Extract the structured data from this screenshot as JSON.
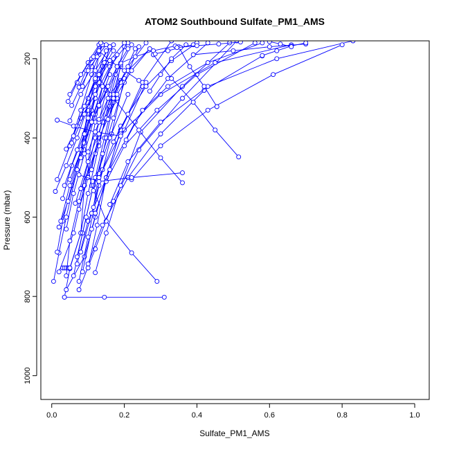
{
  "chart_data": {
    "type": "line",
    "title": "ATOM2 Southbound Sulfate_PM1_AMS",
    "xlabel": "Sulfate_PM1_AMS",
    "ylabel": "Pressure (mbar)",
    "xlim": [
      -0.03,
      1.04
    ],
    "ylim": [
      1060,
      155
    ],
    "y_reversed": true,
    "x_ticks": [
      0.0,
      0.2,
      0.4,
      0.6,
      0.8,
      1.0
    ],
    "x_tick_labels": [
      "0.0",
      "0.2",
      "0.4",
      "0.6",
      "0.8",
      "1.0"
    ],
    "y_ticks": [
      200,
      400,
      600,
      800,
      1000
    ],
    "y_tick_labels": [
      "200",
      "400",
      "600",
      "800",
      "1000"
    ],
    "series_color": "#0000ff",
    "marker": "open-circle",
    "grid": false,
    "legend": "none",
    "series": [
      {
        "x": [
          0.035,
          0.145,
          0.31
        ],
        "y": [
          802,
          802,
          802
        ]
      },
      {
        "x": [
          0.035,
          0.05,
          0.08,
          0.09,
          0.13,
          0.18
        ],
        "y": [
          802,
          730,
          640,
          520,
          400,
          300
        ]
      },
      {
        "x": [
          0.04,
          0.09,
          0.12,
          0.15,
          0.19,
          0.25
        ],
        "y": [
          783,
          700,
          600,
          500,
          380,
          270
        ]
      },
      {
        "x": [
          0.075,
          0.12,
          0.17,
          0.24,
          0.36,
          0.51
        ],
        "y": [
          783,
          680,
          560,
          430,
          300,
          155
        ]
      },
      {
        "x": [
          0.005,
          0.02,
          0.04,
          0.07,
          0.1,
          0.13
        ],
        "y": [
          762,
          690,
          600,
          480,
          340,
          190
        ]
      },
      {
        "x": [
          0.29,
          0.22,
          0.15,
          0.11,
          0.09
        ],
        "y": [
          762,
          690,
          610,
          520,
          430
        ]
      },
      {
        "x": [
          0.075,
          0.1,
          0.13,
          0.165,
          0.2
        ],
        "y": [
          762,
          650,
          520,
          390,
          250
        ]
      },
      {
        "x": [
          0.03,
          0.035,
          0.04,
          0.045,
          0.05
        ],
        "y": [
          728,
          728,
          728,
          728,
          728
        ]
      },
      {
        "x": [
          0.05,
          0.08,
          0.1,
          0.13,
          0.16,
          0.2
        ],
        "y": [
          728,
          640,
          540,
          420,
          300,
          170
        ]
      },
      {
        "x": [
          0.1,
          0.125,
          0.15,
          0.19,
          0.25,
          0.33
        ],
        "y": [
          728,
          620,
          500,
          380,
          260,
          155
        ]
      },
      {
        "x": [
          0.12,
          0.15,
          0.19,
          0.245,
          0.36,
          0.49
        ],
        "y": [
          740,
          640,
          520,
          385,
          270,
          160
        ]
      },
      {
        "x": [
          0.02,
          0.06,
          0.09,
          0.12,
          0.15
        ],
        "y": [
          738,
          640,
          520,
          400,
          280
        ]
      },
      {
        "x": [
          0.085,
          0.11,
          0.15,
          0.2,
          0.26
        ],
        "y": [
          738,
          630,
          500,
          380,
          260
        ]
      },
      {
        "x": [
          0.04,
          0.05,
          0.075,
          0.1,
          0.12,
          0.14
        ],
        "y": [
          748,
          660,
          560,
          460,
          360,
          270
        ]
      },
      {
        "x": [
          0.06,
          0.085,
          0.115,
          0.16,
          0.21
        ],
        "y": [
          748,
          640,
          520,
          400,
          290
        ]
      },
      {
        "x": [
          0.1,
          0.14,
          0.21,
          0.3,
          0.42,
          0.58
        ],
        "y": [
          718,
          620,
          500,
          390,
          280,
          193
        ]
      },
      {
        "x": [
          0.07,
          0.1,
          0.16,
          0.23,
          0.32,
          0.43
        ],
        "y": [
          718,
          610,
          480,
          360,
          250,
          160
        ]
      },
      {
        "x": [
          0.015,
          0.03,
          0.055,
          0.08,
          0.1
        ],
        "y": [
          688,
          610,
          520,
          430,
          330
        ]
      },
      {
        "x": [
          0.08,
          0.11,
          0.14,
          0.19
        ],
        "y": [
          688,
          590,
          480,
          370
        ]
      },
      {
        "x": [
          0.07,
          0.095,
          0.12,
          0.145,
          0.17
        ],
        "y": [
          700,
          600,
          500,
          400,
          300
        ]
      },
      {
        "x": [
          0.02,
          0.045,
          0.07,
          0.095,
          0.12
        ],
        "y": [
          625,
          560,
          480,
          390,
          300
        ]
      },
      {
        "x": [
          0.04,
          0.06,
          0.09,
          0.12,
          0.16
        ],
        "y": [
          630,
          540,
          440,
          340,
          240
        ]
      },
      {
        "x": [
          0.12,
          0.15,
          0.2,
          0.29,
          0.4,
          0.56
        ],
        "y": [
          590,
          510,
          420,
          330,
          240,
          160
        ]
      },
      {
        "x": [
          0.025,
          0.05,
          0.08,
          0.11,
          0.14
        ],
        "y": [
          610,
          520,
          430,
          330,
          220
        ]
      },
      {
        "x": [
          0.075,
          0.1,
          0.13,
          0.16,
          0.19
        ],
        "y": [
          580,
          500,
          410,
          320,
          220
        ]
      },
      {
        "x": [
          0.01,
          0.04,
          0.07,
          0.1,
          0.13
        ],
        "y": [
          535,
          470,
          400,
          320,
          240
        ]
      },
      {
        "x": [
          0.03,
          0.055,
          0.09,
          0.12,
          0.15
        ],
        "y": [
          553,
          470,
          390,
          300,
          210
        ]
      },
      {
        "x": [
          0.115,
          0.13,
          0.15,
          0.17,
          0.19
        ],
        "y": [
          575,
          490,
          400,
          310,
          215
        ]
      },
      {
        "x": [
          0.16,
          0.21,
          0.3,
          0.43,
          0.62,
          0.83
        ],
        "y": [
          568,
          460,
          360,
          270,
          200,
          155
        ]
      },
      {
        "x": [
          0.065,
          0.1,
          0.14,
          0.19
        ],
        "y": [
          565,
          460,
          360,
          255
        ]
      },
      {
        "x": [
          0.035,
          0.07,
          0.1,
          0.13,
          0.16
        ],
        "y": [
          520,
          430,
          350,
          260,
          170
        ]
      },
      {
        "x": [
          0.115,
          0.14,
          0.17,
          0.2,
          0.24
        ],
        "y": [
          533,
          440,
          350,
          260,
          170
        ]
      },
      {
        "x": [
          0.08,
          0.12,
          0.15,
          0.19,
          0.23
        ],
        "y": [
          528,
          440,
          350,
          260,
          175
        ]
      },
      {
        "x": [
          0.015,
          0.05,
          0.08,
          0.11,
          0.14
        ],
        "y": [
          505,
          420,
          330,
          240,
          165
        ]
      },
      {
        "x": [
          0.05,
          0.09,
          0.13,
          0.175,
          0.22
        ],
        "y": [
          505,
          410,
          320,
          240,
          165
        ]
      },
      {
        "x": [
          0.22,
          0.3,
          0.43,
          0.61,
          0.8
        ],
        "y": [
          505,
          420,
          330,
          240,
          165
        ]
      },
      {
        "x": [
          0.36,
          0.3,
          0.24,
          0.17,
          0.11
        ],
        "y": [
          513,
          450,
          380,
          300,
          220
        ]
      },
      {
        "x": [
          0.075,
          0.13,
          0.22,
          0.36
        ],
        "y": [
          493,
          510,
          500,
          488
        ]
      },
      {
        "x": [
          0.13,
          0.19,
          0.3,
          0.45,
          0.66
        ],
        "y": [
          500,
          390,
          290,
          210,
          165
        ]
      },
      {
        "x": [
          0.515,
          0.45,
          0.39,
          0.33,
          0.28
        ],
        "y": [
          448,
          380,
          310,
          250,
          190
        ]
      },
      {
        "x": [
          0.04,
          0.08,
          0.12,
          0.16,
          0.21
        ],
        "y": [
          428,
          350,
          290,
          220,
          160
        ]
      },
      {
        "x": [
          0.1,
          0.13,
          0.17,
          0.21,
          0.26
        ],
        "y": [
          435,
          360,
          290,
          220,
          160
        ]
      },
      {
        "x": [
          0.17,
          0.21,
          0.26,
          0.33,
          0.4
        ],
        "y": [
          410,
          340,
          270,
          205,
          160
        ]
      },
      {
        "x": [
          0.055,
          0.09,
          0.12,
          0.16,
          0.2
        ],
        "y": [
          413,
          340,
          270,
          205,
          160
        ]
      },
      {
        "x": [
          0.09,
          0.115,
          0.14,
          0.17
        ],
        "y": [
          413,
          340,
          270,
          200
        ]
      },
      {
        "x": [
          0.205,
          0.25,
          0.32,
          0.43,
          0.58
        ],
        "y": [
          405,
          330,
          270,
          210,
          160
        ]
      },
      {
        "x": [
          0.015,
          0.06,
          0.12,
          0.19
        ],
        "y": [
          355,
          370,
          385,
          395
        ]
      },
      {
        "x": [
          0.05,
          0.08,
          0.12,
          0.16
        ],
        "y": [
          357,
          290,
          230,
          170
        ]
      },
      {
        "x": [
          0.13,
          0.16,
          0.21,
          0.27
        ],
        "y": [
          353,
          290,
          230,
          175
        ]
      },
      {
        "x": [
          0.155,
          0.18,
          0.22,
          0.27
        ],
        "y": [
          353,
          290,
          230,
          175
        ]
      },
      {
        "x": [
          0.455,
          0.42,
          0.38,
          0.35
        ],
        "y": [
          321,
          270,
          220,
          170
        ]
      },
      {
        "x": [
          0.045,
          0.07,
          0.1,
          0.13
        ],
        "y": [
          308,
          260,
          210,
          165
        ]
      },
      {
        "x": [
          0.055,
          0.08,
          0.11,
          0.14
        ],
        "y": [
          318,
          270,
          220,
          165
        ]
      },
      {
        "x": [
          0.27,
          0.3,
          0.33,
          0.37
        ],
        "y": [
          282,
          240,
          200,
          165
        ]
      },
      {
        "x": [
          0.05,
          0.08,
          0.11,
          0.14
        ],
        "y": [
          290,
          240,
          200,
          165
        ]
      },
      {
        "x": [
          0.19,
          0.23,
          0.28,
          0.34
        ],
        "y": [
          211,
          195,
          180,
          168
        ]
      },
      {
        "x": [
          0.285,
          0.32,
          0.355,
          0.39
        ],
        "y": [
          188,
          180,
          172,
          165
        ]
      },
      {
        "x": [
          0.39,
          0.5,
          0.6,
          0.7
        ],
        "y": [
          190,
          180,
          170,
          163
        ]
      },
      {
        "x": [
          0.58,
          0.62,
          0.66,
          0.7
        ],
        "y": [
          192,
          180,
          168,
          160
        ]
      },
      {
        "x": [
          0.66,
          0.63,
          0.6
        ],
        "y": [
          170,
          163,
          157
        ]
      },
      {
        "x": [
          0.345,
          0.4,
          0.46,
          0.52
        ],
        "y": [
          172,
          167,
          163,
          158
        ]
      },
      {
        "x": [
          0.24,
          0.2,
          0.16,
          0.13
        ],
        "y": [
          255,
          230,
          205,
          180
        ]
      },
      {
        "x": [
          0.075,
          0.095,
          0.115,
          0.135
        ],
        "y": [
          272,
          230,
          195,
          160
        ]
      },
      {
        "x": [
          0.085,
          0.1,
          0.125,
          0.15
        ],
        "y": [
          270,
          230,
          195,
          165
        ]
      },
      {
        "x": [
          0.13,
          0.155,
          0.18,
          0.21
        ],
        "y": [
          318,
          270,
          220,
          175
        ]
      },
      {
        "x": [
          0.1,
          0.12,
          0.145,
          0.17
        ],
        "y": [
          300,
          255,
          210,
          165
        ]
      },
      {
        "x": [
          0.07,
          0.1,
          0.13,
          0.17
        ],
        "y": [
          370,
          300,
          240,
          180
        ]
      },
      {
        "x": [
          0.08,
          0.11,
          0.14,
          0.18
        ],
        "y": [
          450,
          360,
          270,
          190
        ]
      },
      {
        "x": [
          0.06,
          0.09,
          0.12,
          0.15
        ],
        "y": [
          395,
          320,
          250,
          180
        ]
      },
      {
        "x": [
          0.11,
          0.13,
          0.155,
          0.18
        ],
        "y": [
          480,
          390,
          300,
          220
        ]
      }
    ]
  }
}
